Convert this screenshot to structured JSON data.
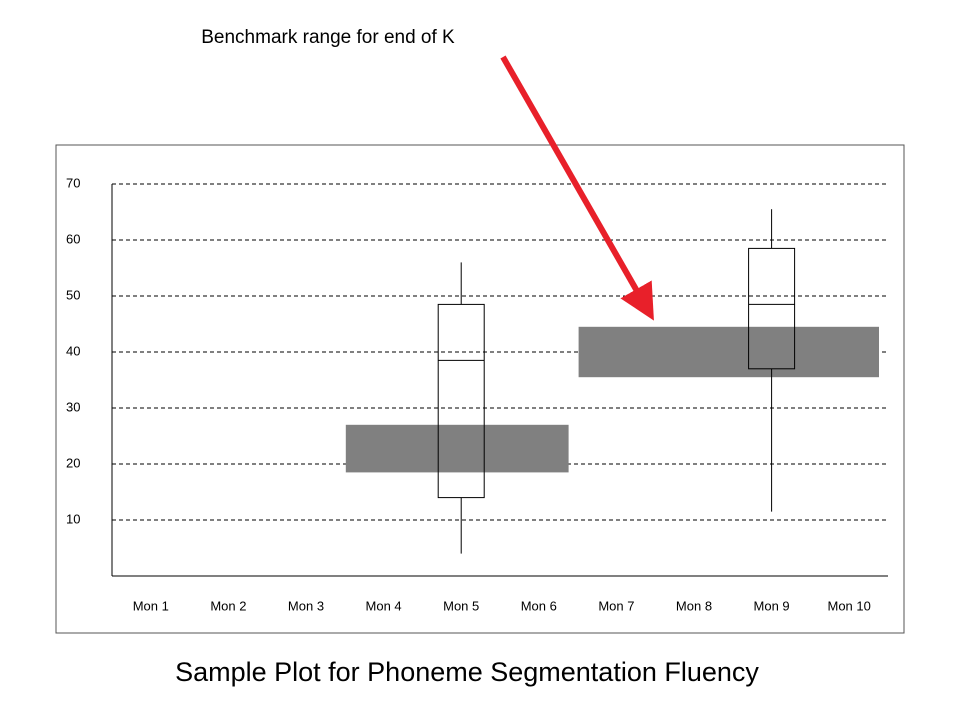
{
  "chart_data": {
    "type": "box",
    "title": "Sample Plot for Phoneme Segmentation Fluency",
    "annotation": "Benchmark range for end of K",
    "categories": [
      "Mon 1",
      "Mon 2",
      "Mon 3",
      "Mon 4",
      "Mon 5",
      "Mon 6",
      "Mon 7",
      "Mon 8",
      "Mon 9",
      "Mon 10"
    ],
    "ylim": [
      0,
      70
    ],
    "yticks": [
      10,
      20,
      30,
      40,
      50,
      60,
      70
    ],
    "grid": true,
    "box_color": "#ffffff",
    "boxes": [
      {
        "category": "Mon 5",
        "min": 4,
        "q1": 14,
        "median": 38.5,
        "q3": 48.5,
        "max": 56
      },
      {
        "category": "Mon 9",
        "min": 11.5,
        "q1": 37,
        "median": 48.5,
        "q3": 58.5,
        "max": 65.5
      }
    ],
    "benchmark_color": "#808080",
    "benchmarks": [
      {
        "from": "Mon 4",
        "to": "Mon 6",
        "low": 18.5,
        "high": 27
      },
      {
        "from": "Mon 7",
        "to": "Mon 10",
        "low": 35.5,
        "high": 44.5
      }
    ]
  }
}
